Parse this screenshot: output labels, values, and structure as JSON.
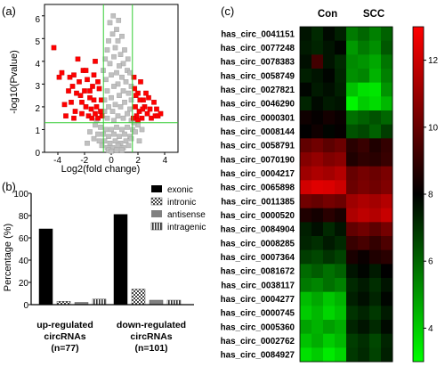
{
  "chart_data": [
    {
      "panel": "(a)",
      "type": "scatter",
      "xlabel": "Log2(fold change)",
      "ylabel": "-log10(Pvalue)",
      "xlim": [
        -5,
        5
      ],
      "ylim": [
        0,
        6.5
      ],
      "xticks": [
        -4,
        -2,
        0,
        2,
        4
      ],
      "yticks": [
        0,
        1,
        2,
        3,
        4,
        5,
        6
      ],
      "threshold_lines": {
        "x": [
          -0.585,
          1.585
        ],
        "y": [
          1.3
        ]
      },
      "series": [
        {
          "role": "significant",
          "color": "#ff0000",
          "points": [
            [
              -4.3,
              4.6
            ],
            [
              -3.9,
              3.3
            ],
            [
              -3.7,
              3.5
            ],
            [
              -3.5,
              2.1
            ],
            [
              -3.2,
              2.7
            ],
            [
              -3.1,
              3.3
            ],
            [
              -3.0,
              2.2
            ],
            [
              -2.9,
              2.9
            ],
            [
              -2.8,
              3.4
            ],
            [
              -2.7,
              1.8
            ],
            [
              -2.5,
              4.1
            ],
            [
              -2.4,
              3.1
            ],
            [
              -2.3,
              2.5
            ],
            [
              -2.2,
              1.7
            ],
            [
              -2.1,
              3.6
            ],
            [
              -2.0,
              2.7
            ],
            [
              -1.9,
              2.0
            ],
            [
              -1.8,
              3.2
            ],
            [
              -1.7,
              1.6
            ],
            [
              -1.6,
              2.7
            ],
            [
              -1.5,
              1.9
            ],
            [
              -1.4,
              2.9
            ],
            [
              -1.3,
              2.3
            ],
            [
              -1.2,
              1.7
            ],
            [
              -1.1,
              2.0
            ],
            [
              -1.0,
              1.5
            ],
            [
              -0.9,
              2.8
            ],
            [
              -0.8,
              1.8
            ],
            [
              -0.7,
              1.6
            ],
            [
              -1.6,
              2.4
            ],
            [
              -1.9,
              3.6
            ],
            [
              -2.6,
              2.6
            ],
            [
              -1.3,
              3.4
            ],
            [
              -0.75,
              2.3
            ],
            [
              -1.45,
              1.5
            ],
            [
              -2.2,
              2.2
            ],
            [
              -3.4,
              1.6
            ],
            [
              -1.0,
              3.1
            ],
            [
              -2.8,
              1.5
            ],
            [
              -1.2,
              4.0
            ],
            [
              1.7,
              3.3
            ],
            [
              1.8,
              2.0
            ],
            [
              1.9,
              1.6
            ],
            [
              2.0,
              2.6
            ],
            [
              2.1,
              1.8
            ],
            [
              2.2,
              3.1
            ],
            [
              2.3,
              1.5
            ],
            [
              2.4,
              2.3
            ],
            [
              2.5,
              2.0
            ],
            [
              2.6,
              2.6
            ],
            [
              2.7,
              1.7
            ],
            [
              2.8,
              2.4
            ],
            [
              2.9,
              1.9
            ],
            [
              3.0,
              1.5
            ],
            [
              3.2,
              2.2
            ],
            [
              3.3,
              1.6
            ],
            [
              3.4,
              1.9
            ],
            [
              3.5,
              1.6
            ],
            [
              3.7,
              1.7
            ],
            [
              1.75,
              2.8
            ],
            [
              2.15,
              2.3
            ],
            [
              1.65,
              1.5
            ],
            [
              2.0,
              1.4
            ],
            [
              2.35,
              1.9
            ],
            [
              1.85,
              2.5
            ]
          ]
        },
        {
          "role": "not-significant",
          "color": "#c0c0c0",
          "points": [
            [
              -0.1,
              5.7
            ],
            [
              0.4,
              5.4
            ],
            [
              0.1,
              5.2
            ],
            [
              -0.2,
              4.9
            ],
            [
              0.5,
              4.9
            ],
            [
              0.8,
              5.1
            ],
            [
              0.3,
              4.6
            ],
            [
              0.7,
              4.3
            ],
            [
              -0.3,
              4.5
            ],
            [
              1.0,
              4.5
            ],
            [
              0.2,
              4.2
            ],
            [
              0.9,
              3.9
            ],
            [
              0.6,
              3.8
            ],
            [
              -0.1,
              3.9
            ],
            [
              1.2,
              3.6
            ],
            [
              0.4,
              3.5
            ],
            [
              1.4,
              3.5
            ],
            [
              0.0,
              3.4
            ],
            [
              0.8,
              3.3
            ],
            [
              -0.4,
              3.2
            ],
            [
              1.1,
              3.1
            ],
            [
              0.5,
              3.0
            ],
            [
              1.5,
              2.9
            ],
            [
              0.2,
              2.9
            ],
            [
              0.9,
              2.7
            ],
            [
              -0.3,
              2.7
            ],
            [
              1.3,
              2.6
            ],
            [
              0.6,
              2.5
            ],
            [
              0.0,
              2.4
            ],
            [
              1.5,
              2.3
            ],
            [
              -0.5,
              2.3
            ],
            [
              1.0,
              2.2
            ],
            [
              0.3,
              2.1
            ],
            [
              -0.2,
              2.0
            ],
            [
              0.7,
              2.0
            ],
            [
              1.4,
              1.9
            ],
            [
              -0.5,
              1.8
            ],
            [
              0.1,
              1.8
            ],
            [
              1.2,
              1.7
            ],
            [
              0.5,
              1.6
            ],
            [
              -0.3,
              1.5
            ],
            [
              0.9,
              1.5
            ],
            [
              1.5,
              1.4
            ],
            [
              0.2,
              1.4
            ],
            [
              -1.2,
              1.2
            ],
            [
              -0.8,
              1.1
            ],
            [
              -0.4,
              1.0
            ],
            [
              0.0,
              1.0
            ],
            [
              0.4,
              1.1
            ],
            [
              0.8,
              1.0
            ],
            [
              1.2,
              1.1
            ],
            [
              1.6,
              1.0
            ],
            [
              2.0,
              1.2
            ],
            [
              -1.6,
              0.9
            ],
            [
              -1.0,
              0.8
            ],
            [
              -0.6,
              0.8
            ],
            [
              -0.2,
              0.7
            ],
            [
              0.2,
              0.8
            ],
            [
              0.6,
              0.7
            ],
            [
              1.0,
              0.8
            ],
            [
              1.4,
              0.7
            ],
            [
              1.8,
              0.9
            ],
            [
              -1.3,
              0.6
            ],
            [
              -0.9,
              0.5
            ],
            [
              -0.5,
              0.5
            ],
            [
              -0.1,
              0.4
            ],
            [
              0.3,
              0.5
            ],
            [
              0.7,
              0.4
            ],
            [
              1.1,
              0.5
            ],
            [
              1.5,
              0.6
            ],
            [
              -0.7,
              0.3
            ],
            [
              -0.3,
              0.2
            ],
            [
              0.1,
              0.2
            ],
            [
              0.5,
              0.3
            ],
            [
              0.9,
              0.2
            ],
            [
              1.3,
              0.3
            ],
            [
              -0.2,
              0.1
            ],
            [
              0.4,
              0.1
            ],
            [
              0.8,
              0.1
            ],
            [
              0.0,
              0.05
            ],
            [
              -1.1,
              1.4
            ],
            [
              1.7,
              1.3
            ],
            [
              2.1,
              0.5
            ],
            [
              -1.8,
              0.4
            ],
            [
              2.3,
              1.0
            ],
            [
              0.15,
              6.0
            ],
            [
              0.55,
              5.8
            ],
            [
              -0.45,
              4.1
            ],
            [
              1.25,
              4.1
            ],
            [
              -0.6,
              3.6
            ]
          ]
        }
      ]
    },
    {
      "panel": "(b)",
      "type": "bar",
      "ylabel": "Percentage (%)",
      "ylim": [
        0,
        100
      ],
      "yticks": [
        0,
        20,
        40,
        60,
        80,
        100
      ],
      "categories": [
        "up-regulated\ncircRNAs\n(n=77)",
        "down-regulated\ncircRNAs\n(n=101)"
      ],
      "series": [
        {
          "name": "exonic",
          "pattern": "solid",
          "values": [
            68,
            81
          ]
        },
        {
          "name": "intronic",
          "pattern": "checker",
          "values": [
            3,
            14
          ]
        },
        {
          "name": "antisense",
          "pattern": "gray",
          "values": [
            2,
            4
          ]
        },
        {
          "name": "intragenic",
          "pattern": "stripe",
          "values": [
            5,
            4
          ]
        }
      ]
    },
    {
      "panel": "(c)",
      "type": "heatmap",
      "column_groups": [
        "Con",
        "SCC"
      ],
      "rows": [
        "has_circ_0041151",
        "has_circ_0077248",
        "has_circ_0078383",
        "has_circ_0058749",
        "has_circ_0027821",
        "has_circ_0046290",
        "has_circ_0000301",
        "has_circ_0008144",
        "has_circ_0058791",
        "has_circ_0070190",
        "has_circ_0004217",
        "has_circ_0065898",
        "has_circ_0011385",
        "has_circ_0000520",
        "has_circ_0084904",
        "has_circ_0008285",
        "has_circ_0007364",
        "has_circ_0081672",
        "has_circ_0038117",
        "has_circ_0004277",
        "has_circ_0000745",
        "has_circ_0005360",
        "has_circ_0002762",
        "has_circ_0084927"
      ],
      "values": [
        [
          7.6,
          7.2,
          7.8,
          7.4,
          5.6,
          6.0,
          5.5,
          6.1
        ],
        [
          7.5,
          7.3,
          7.6,
          7.9,
          5.0,
          5.6,
          5.2,
          6.3
        ],
        [
          7.7,
          9.3,
          7.6,
          7.2,
          5.3,
          5.1,
          4.7,
          5.7
        ],
        [
          7.4,
          7.6,
          7.9,
          7.3,
          5.2,
          5.4,
          4.5,
          5.5
        ],
        [
          7.9,
          7.5,
          7.7,
          7.4,
          4.2,
          3.6,
          3.5,
          5.1
        ],
        [
          7.3,
          7.8,
          7.5,
          7.6,
          3.2,
          4.0,
          3.7,
          4.4
        ],
        [
          8.3,
          8.1,
          8.4,
          8.2,
          5.8,
          6.1,
          6.4,
          6.0
        ],
        [
          8.0,
          8.3,
          7.9,
          8.1,
          6.4,
          6.6,
          6.1,
          6.8
        ],
        [
          9.9,
          10.2,
          9.8,
          10.1,
          8.8,
          9.1,
          8.6,
          9.0
        ],
        [
          10.6,
          10.9,
          10.5,
          10.7,
          8.6,
          8.9,
          8.8,
          9.1
        ],
        [
          11.1,
          11.4,
          11.2,
          11.5,
          10.0,
          10.3,
          10.1,
          10.4
        ],
        [
          12.1,
          12.4,
          12.3,
          12.0,
          10.1,
          10.4,
          10.2,
          10.5
        ],
        [
          10.2,
          10.0,
          10.3,
          10.1,
          11.1,
          11.4,
          11.2,
          11.5
        ],
        [
          8.6,
          8.4,
          8.8,
          8.5,
          11.4,
          11.7,
          11.5,
          11.9
        ],
        [
          7.4,
          7.7,
          7.2,
          7.6,
          9.9,
          10.2,
          9.8,
          10.3
        ],
        [
          7.3,
          7.1,
          7.5,
          7.2,
          9.1,
          9.4,
          9.0,
          9.5
        ],
        [
          6.8,
          6.6,
          7.0,
          6.7,
          8.5,
          8.2,
          8.6,
          8.8
        ],
        [
          5.9,
          6.2,
          5.8,
          6.1,
          7.6,
          7.9,
          7.5,
          8.0
        ],
        [
          5.6,
          5.4,
          5.8,
          5.5,
          7.2,
          7.5,
          7.1,
          7.6
        ],
        [
          4.3,
          4.7,
          4.1,
          4.5,
          7.4,
          7.7,
          7.3,
          7.9
        ],
        [
          4.0,
          4.4,
          3.8,
          4.2,
          7.0,
          7.3,
          6.9,
          7.5
        ],
        [
          4.8,
          4.5,
          4.9,
          4.6,
          7.3,
          7.6,
          7.2,
          7.8
        ],
        [
          4.2,
          4.6,
          4.0,
          4.4,
          6.8,
          7.1,
          6.6,
          7.3
        ],
        [
          3.6,
          4.0,
          3.4,
          3.8,
          6.9,
          7.2,
          6.7,
          7.4
        ]
      ],
      "colorbar": {
        "min": 3,
        "max": 13,
        "ticks": [
          4,
          6,
          8,
          10,
          12
        ],
        "colors": [
          "#00ff00",
          "#000000",
          "#ff0000"
        ]
      }
    }
  ],
  "panel_labels": {
    "a": "(a)",
    "b": "(b)",
    "c": "(c)"
  },
  "panel_a": {
    "ylabel": "-log10(Pvalue)",
    "xlabel": "Log2(fold change)",
    "yticks": [
      "0",
      "1",
      "2",
      "3",
      "4",
      "5",
      "6"
    ],
    "xticks": [
      "-4",
      "-2",
      "0",
      "2",
      "4"
    ]
  },
  "panel_b": {
    "ylabel": "Percentage (%)",
    "yticks": [
      "0",
      "20",
      "40",
      "60",
      "80",
      "100"
    ],
    "group1": {
      "line1": "up-regulated",
      "line2": "circRNAs",
      "line3": "(n=77)"
    },
    "group2": {
      "line1": "down-regulated",
      "line2": "circRNAs",
      "line3": "(n=101)"
    },
    "legend": [
      "exonic",
      "intronic",
      "antisense",
      "intragenic"
    ]
  },
  "panel_c": {
    "col_con": "Con",
    "col_scc": "SCC",
    "colorbar_ticks": [
      "4",
      "6",
      "8",
      "10",
      "12"
    ]
  }
}
